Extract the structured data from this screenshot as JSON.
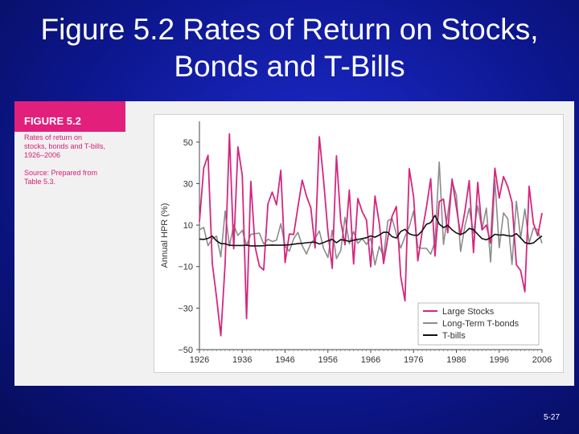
{
  "slide": {
    "title_line1": "Figure 5.2 Rates of Return on Stocks,",
    "title_line2": "Bonds and T-Bills",
    "page_number": "5-27"
  },
  "caption": {
    "heading": "FIGURE 5.2",
    "text_lines": [
      "Rates of return on",
      "stocks, bonds and T-bills,",
      "1926–2006"
    ],
    "source_lines": [
      "Source: Prepared from",
      "Table 5.3."
    ]
  },
  "colors": {
    "large_stocks": "#d4277f",
    "bonds": "#8c8c8c",
    "tbills": "#111111",
    "caption_bg": "#e2207c"
  },
  "chart_data": {
    "type": "line",
    "ylabel": "Annual HPR (%)",
    "xlabel": "",
    "ylim": [
      -50,
      60
    ],
    "y_ticks": [
      50,
      30,
      10,
      -10,
      -30,
      -50
    ],
    "y_tick_labels": [
      "50",
      "30",
      "10",
      "−10",
      "−30",
      "−50"
    ],
    "xlim": [
      1926,
      2006
    ],
    "x_ticks": [
      1926,
      1936,
      1946,
      1956,
      1966,
      1976,
      1986,
      1996,
      2006
    ],
    "legend_position": "bottom-right",
    "grid": false,
    "x": [
      1926,
      1927,
      1928,
      1929,
      1930,
      1931,
      1932,
      1933,
      1934,
      1935,
      1936,
      1937,
      1938,
      1939,
      1940,
      1941,
      1942,
      1943,
      1944,
      1945,
      1946,
      1947,
      1948,
      1949,
      1950,
      1951,
      1952,
      1953,
      1954,
      1955,
      1956,
      1957,
      1958,
      1959,
      1960,
      1961,
      1962,
      1963,
      1964,
      1965,
      1966,
      1967,
      1968,
      1969,
      1970,
      1971,
      1972,
      1973,
      1974,
      1975,
      1976,
      1977,
      1978,
      1979,
      1980,
      1981,
      1982,
      1983,
      1984,
      1985,
      1986,
      1987,
      1988,
      1989,
      1990,
      1991,
      1992,
      1993,
      1994,
      1995,
      1996,
      1997,
      1998,
      1999,
      2000,
      2001,
      2002,
      2003,
      2004,
      2005,
      2006
    ],
    "series": [
      {
        "name": "Large Stocks",
        "values": [
          11.6,
          37.5,
          43.6,
          -8.4,
          -24.9,
          -43.3,
          -8.2,
          54.0,
          -1.4,
          47.7,
          33.9,
          -35.0,
          31.1,
          -0.4,
          -9.8,
          -11.6,
          20.3,
          25.9,
          19.8,
          36.4,
          -8.1,
          5.7,
          5.5,
          18.8,
          31.7,
          24.0,
          18.4,
          -1.0,
          52.6,
          31.6,
          6.6,
          -10.8,
          43.4,
          12.0,
          0.5,
          26.9,
          -8.7,
          22.8,
          16.5,
          12.5,
          -10.1,
          24.0,
          11.1,
          -8.5,
          4.0,
          14.3,
          19.0,
          -14.7,
          -26.5,
          37.2,
          23.8,
          -7.2,
          6.6,
          18.4,
          32.4,
          -4.9,
          21.4,
          22.5,
          6.3,
          32.2,
          18.5,
          5.2,
          16.8,
          31.5,
          -3.2,
          30.6,
          7.7,
          10.0,
          1.3,
          37.4,
          23.1,
          33.4,
          28.6,
          21.0,
          -9.1,
          -11.9,
          -22.1,
          28.7,
          10.9,
          4.9,
          15.8
        ]
      },
      {
        "name": "Long-Term T-bonds",
        "values": [
          7.8,
          8.9,
          0.1,
          3.4,
          4.7,
          -5.3,
          16.8,
          -0.1,
          10.0,
          5.0,
          7.5,
          0.2,
          5.5,
          5.9,
          6.1,
          0.9,
          3.2,
          2.1,
          2.8,
          10.7,
          -0.1,
          -2.6,
          3.4,
          6.5,
          0.1,
          -3.9,
          1.2,
          3.6,
          7.2,
          -1.3,
          -5.6,
          7.5,
          -6.1,
          -2.3,
          13.8,
          1.0,
          6.9,
          1.2,
          3.5,
          0.7,
          3.7,
          -9.2,
          -0.3,
          -5.1,
          12.1,
          13.2,
          5.7,
          -1.1,
          4.4,
          9.2,
          16.8,
          -0.7,
          -1.2,
          -1.2,
          -4.0,
          1.9,
          40.4,
          0.7,
          15.4,
          31.0,
          24.5,
          -2.7,
          9.7,
          18.1,
          6.2,
          19.3,
          8.1,
          18.2,
          -7.8,
          31.7,
          -0.9,
          15.9,
          13.1,
          -9.0,
          21.5,
          3.7,
          17.8,
          1.4,
          8.5,
          7.8,
          1.2
        ]
      },
      {
        "name": "T-bills",
        "values": [
          3.3,
          3.1,
          3.6,
          4.7,
          2.4,
          1.1,
          1.0,
          0.3,
          0.2,
          0.2,
          0.2,
          0.3,
          0.0,
          0.0,
          0.0,
          0.1,
          0.3,
          0.4,
          0.3,
          0.3,
          0.4,
          0.5,
          0.8,
          1.1,
          1.2,
          1.5,
          1.7,
          1.8,
          0.9,
          1.6,
          2.5,
          3.1,
          1.5,
          3.0,
          2.7,
          2.1,
          2.7,
          3.1,
          3.5,
          3.9,
          4.8,
          4.2,
          5.2,
          6.6,
          6.5,
          4.4,
          3.8,
          6.9,
          8.0,
          5.8,
          5.1,
          5.1,
          7.2,
          10.4,
          11.2,
          14.7,
          10.5,
          8.8,
          9.9,
          7.7,
          6.2,
          5.5,
          6.4,
          8.4,
          7.8,
          5.6,
          3.5,
          2.9,
          3.9,
          5.6,
          5.2,
          5.3,
          4.9,
          4.7,
          5.9,
          3.8,
          1.6,
          1.0,
          1.4,
          3.2,
          4.8
        ]
      }
    ]
  }
}
